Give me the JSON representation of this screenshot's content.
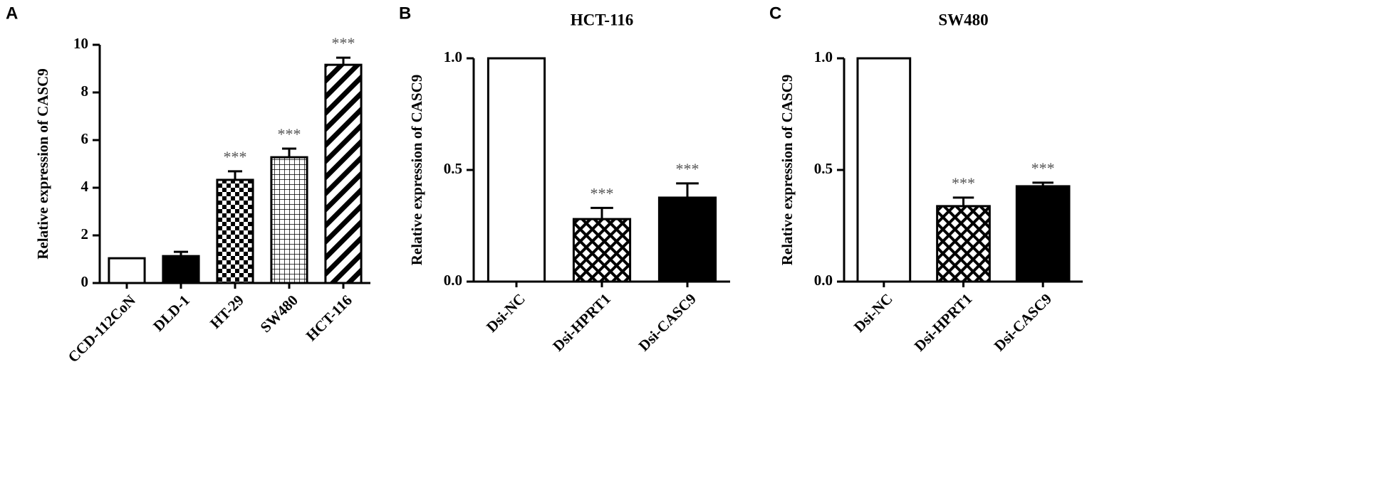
{
  "chart_data": [
    {
      "type": "bar",
      "panel": "A",
      "ylabel": "Relative expression of CASC9",
      "categories": [
        "CCD-112CoN",
        "DLD-1",
        "HT-29",
        "SW480",
        "HCT-116"
      ],
      "values": [
        1.04,
        1.13,
        4.33,
        5.28,
        9.16
      ],
      "errors": [
        0,
        0.18,
        0.36,
        0.36,
        0.3
      ],
      "annotations": [
        null,
        null,
        "***",
        "***",
        "***"
      ],
      "patterns": [
        "none",
        "solid",
        "checker",
        "grid",
        "diagonal"
      ],
      "color": "#000000",
      "ylim": [
        0,
        10
      ],
      "yticks": [
        0,
        2,
        4,
        6,
        8,
        10
      ]
    },
    {
      "type": "bar",
      "panel": "B",
      "title": "HCT-116",
      "ylabel": "Relative expression of CASC9",
      "categories": [
        "Dsi-NC",
        "Dsi-HPRT1",
        "Dsi-CASC9"
      ],
      "values": [
        1.0,
        0.28,
        0.376
      ],
      "errors": [
        0,
        0.05,
        0.064
      ],
      "annotations": [
        null,
        "***",
        "***"
      ],
      "patterns": [
        "none",
        "crosshatch",
        "solid"
      ],
      "color": "#000000",
      "ylim": [
        0,
        1
      ],
      "yticks": [
        {
          "value": 0,
          "label": "0.0"
        },
        0.5,
        {
          "value": 1,
          "label": "1.0"
        }
      ]
    },
    {
      "type": "bar",
      "panel": "C",
      "title": "SW480",
      "ylabel": "Relative expression of CASC9",
      "categories": [
        "Dsi-NC",
        "Dsi-HPRT1",
        "Dsi-CASC9"
      ],
      "values": [
        1.0,
        0.338,
        0.427
      ],
      "errors": [
        0,
        0.038,
        0.016
      ],
      "annotations": [
        null,
        "***",
        "***"
      ],
      "patterns": [
        "none",
        "crosshatch",
        "solid"
      ],
      "color": "#000000",
      "ylim": [
        0,
        1
      ],
      "yticks": [
        {
          "value": 0,
          "label": "0.0"
        },
        0.5,
        {
          "value": 1,
          "label": "1.0"
        }
      ]
    }
  ]
}
